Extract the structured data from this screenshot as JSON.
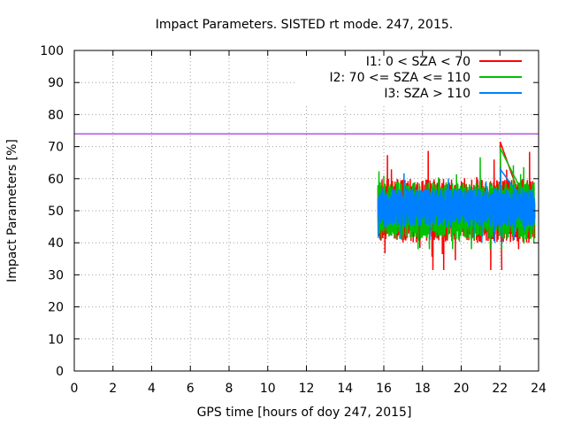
{
  "chart_data": {
    "type": "line",
    "title": "Impact Parameters. SISTED rt mode. 247, 2015.",
    "xlabel": "GPS time [hours of doy 247, 2015]",
    "ylabel": "Impact Parameters [%]",
    "xlim": [
      0,
      24
    ],
    "ylim": [
      0,
      100
    ],
    "xticks": [
      0,
      2,
      4,
      6,
      8,
      10,
      12,
      14,
      16,
      18,
      20,
      22,
      24
    ],
    "yticks": [
      0,
      10,
      20,
      30,
      40,
      50,
      60,
      70,
      80,
      90,
      100
    ],
    "grid": true,
    "legend_position": "top-right",
    "reference_line": {
      "y": 74,
      "color": "#9400d3"
    },
    "series": [
      {
        "name": "I1: 0 < SZA < 70",
        "color": "#ff0000",
        "x_range": [
          15.7,
          23.8
        ],
        "center": 50,
        "spread": 10,
        "min": 31.5,
        "max": 71.5
      },
      {
        "name": "I2: 70 <= SZA <= 110",
        "color": "#00c000",
        "x_range": [
          15.7,
          23.8
        ],
        "center": 50,
        "spread": 9,
        "min": 38,
        "max": 69.5
      },
      {
        "name": "I3: SZA > 110",
        "color": "#0080ff",
        "x_range": [
          15.7,
          23.8
        ],
        "center": 51,
        "spread": 6,
        "min": 40,
        "max": 63
      }
    ]
  }
}
